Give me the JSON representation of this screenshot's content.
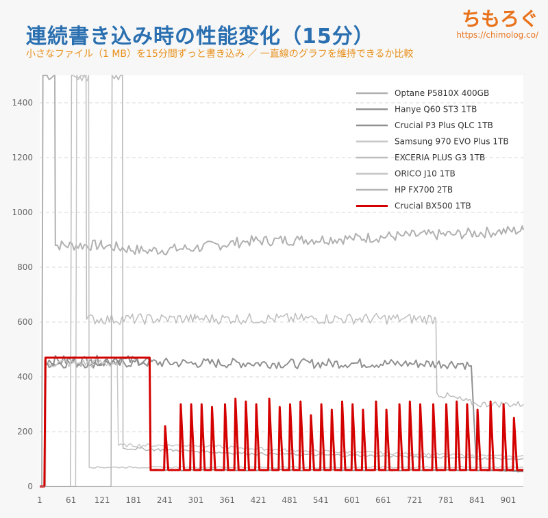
{
  "header": {
    "title": "連続書き込み時の性能変化（15分）",
    "subtitle": "小さなファイル（1 MB）を15分間ずっと書き込み ／ 一直線のグラフを維持できるか比較"
  },
  "brand": {
    "logo": "ちもろぐ",
    "url": "https://chimolog.co/"
  },
  "colors": {
    "background": "#f7f7f7",
    "title": "#2a6fb0",
    "subtitle": "#e8901c",
    "accent_line": "#d40000",
    "grid": "#d7d7d7"
  },
  "chart_data": {
    "type": "line",
    "title": "連続書き込み時の性能変化（15分）",
    "xlabel": "",
    "ylabel": "",
    "xlim": [
      1,
      930
    ],
    "ylim": [
      0,
      1500
    ],
    "x_ticks": [
      "1",
      "61",
      "121",
      "181",
      "241",
      "301",
      "361",
      "421",
      "481",
      "541",
      "601",
      "661",
      "721",
      "781",
      "841",
      "901"
    ],
    "y_ticks": [
      "0",
      "200",
      "400",
      "600",
      "800",
      "1000",
      "1200",
      "1400"
    ],
    "grid": "horizontal",
    "legend_position": "top-right",
    "series": [
      {
        "name": "Optane P5810X 400GB",
        "color": "#b0b0b0",
        "width": 2,
        "points": [
          [
            1,
            0
          ],
          [
            5,
            0
          ],
          [
            7,
            1500
          ],
          [
            30,
            1500
          ],
          [
            31,
            880
          ],
          [
            120,
            880
          ],
          [
            200,
            860
          ],
          [
            300,
            870
          ],
          [
            400,
            895
          ],
          [
            500,
            900
          ],
          [
            600,
            905
          ],
          [
            700,
            915
          ],
          [
            800,
            920
          ],
          [
            880,
            930
          ],
          [
            930,
            935
          ]
        ]
      },
      {
        "name": "Hanye Q60 ST3 1TB",
        "color": "#909090",
        "width": 2,
        "points": [
          [
            1,
            0
          ],
          [
            10,
            0
          ],
          [
            11,
            450
          ],
          [
            60,
            450
          ],
          [
            120,
            450
          ],
          [
            200,
            452
          ],
          [
            300,
            450
          ],
          [
            400,
            450
          ],
          [
            500,
            448
          ],
          [
            600,
            450
          ],
          [
            700,
            448
          ],
          [
            810,
            448
          ],
          [
            830,
            440
          ],
          [
            840,
            60
          ],
          [
            930,
            55
          ]
        ]
      },
      {
        "name": "Crucial P3 Plus QLC 1TB",
        "color": "#8f8f8f",
        "width": 2,
        "points": [
          [
            1,
            0
          ],
          [
            10,
            0
          ],
          [
            11,
            460
          ],
          [
            212,
            460
          ],
          [
            214,
            60
          ],
          [
            600,
            60
          ],
          [
            930,
            60
          ]
        ]
      },
      {
        "name": "Samsung 970 EVO Plus 1TB",
        "color": "#c8c8c8",
        "width": 1.5,
        "points": [
          [
            1,
            0
          ],
          [
            12,
            0
          ],
          [
            13,
            450
          ],
          [
            150,
            450
          ],
          [
            152,
            150
          ],
          [
            300,
            150
          ],
          [
            500,
            130
          ],
          [
            700,
            120
          ],
          [
            900,
            110
          ],
          [
            930,
            110
          ]
        ]
      },
      {
        "name": "EXCERIA PLUS G3 1TB",
        "color": "#bdbdbd",
        "width": 1.5,
        "points": [
          [
            1,
            0
          ],
          [
            60,
            0
          ],
          [
            62,
            1500
          ],
          [
            90,
            1500
          ],
          [
            91,
            610
          ],
          [
            300,
            612
          ],
          [
            500,
            612
          ],
          [
            700,
            612
          ],
          [
            762,
            612
          ],
          [
            764,
            340
          ],
          [
            840,
            300
          ],
          [
            930,
            300
          ]
        ]
      },
      {
        "name": "ORICO J10 1TB",
        "color": "#c4c4c4",
        "width": 1.5,
        "points": [
          [
            1,
            0
          ],
          [
            70,
            0
          ],
          [
            72,
            1500
          ],
          [
            95,
            1500
          ],
          [
            96,
            70
          ],
          [
            300,
            70
          ],
          [
            600,
            70
          ],
          [
            930,
            70
          ]
        ]
      },
      {
        "name": "HP FX700 2TB",
        "color": "#b5b5b5",
        "width": 1.5,
        "points": [
          [
            1,
            0
          ],
          [
            138,
            0
          ],
          [
            140,
            1500
          ],
          [
            160,
            1500
          ],
          [
            161,
            140
          ],
          [
            400,
            120
          ],
          [
            700,
            110
          ],
          [
            930,
            100
          ]
        ]
      },
      {
        "name": "Crucial BX500 1TB",
        "color": "#d40000",
        "width": 3,
        "points": [
          [
            1,
            0
          ],
          [
            10,
            0
          ],
          [
            12,
            470
          ],
          [
            100,
            470
          ],
          [
            212,
            470
          ],
          [
            214,
            60
          ],
          [
            240,
            60
          ],
          [
            242,
            220
          ],
          [
            248,
            60
          ],
          [
            270,
            60
          ],
          [
            272,
            300
          ],
          [
            278,
            60
          ],
          [
            290,
            60
          ],
          [
            292,
            300
          ],
          [
            298,
            60
          ],
          [
            310,
            60
          ],
          [
            312,
            300
          ],
          [
            318,
            60
          ],
          [
            330,
            60
          ],
          [
            332,
            290
          ],
          [
            338,
            60
          ],
          [
            355,
            60
          ],
          [
            357,
            300
          ],
          [
            363,
            60
          ],
          [
            375,
            60
          ],
          [
            377,
            320
          ],
          [
            383,
            60
          ],
          [
            395,
            60
          ],
          [
            397,
            310
          ],
          [
            403,
            60
          ],
          [
            415,
            60
          ],
          [
            417,
            300
          ],
          [
            423,
            60
          ],
          [
            440,
            60
          ],
          [
            442,
            320
          ],
          [
            448,
            60
          ],
          [
            460,
            60
          ],
          [
            462,
            290
          ],
          [
            468,
            60
          ],
          [
            480,
            60
          ],
          [
            482,
            300
          ],
          [
            488,
            60
          ],
          [
            500,
            60
          ],
          [
            502,
            310
          ],
          [
            508,
            60
          ],
          [
            520,
            60
          ],
          [
            522,
            260
          ],
          [
            528,
            60
          ],
          [
            540,
            60
          ],
          [
            542,
            300
          ],
          [
            548,
            60
          ],
          [
            560,
            60
          ],
          [
            562,
            280
          ],
          [
            568,
            60
          ],
          [
            580,
            60
          ],
          [
            582,
            310
          ],
          [
            588,
            60
          ],
          [
            600,
            60
          ],
          [
            602,
            300
          ],
          [
            608,
            60
          ],
          [
            620,
            60
          ],
          [
            622,
            280
          ],
          [
            628,
            60
          ],
          [
            645,
            60
          ],
          [
            647,
            310
          ],
          [
            653,
            60
          ],
          [
            665,
            60
          ],
          [
            667,
            280
          ],
          [
            673,
            60
          ],
          [
            690,
            60
          ],
          [
            692,
            300
          ],
          [
            698,
            60
          ],
          [
            710,
            60
          ],
          [
            712,
            310
          ],
          [
            718,
            60
          ],
          [
            730,
            60
          ],
          [
            732,
            300
          ],
          [
            738,
            60
          ],
          [
            755,
            60
          ],
          [
            757,
            300
          ],
          [
            763,
            60
          ],
          [
            780,
            60
          ],
          [
            782,
            300
          ],
          [
            788,
            60
          ],
          [
            800,
            60
          ],
          [
            802,
            310
          ],
          [
            808,
            60
          ],
          [
            820,
            60
          ],
          [
            822,
            300
          ],
          [
            828,
            60
          ],
          [
            840,
            60
          ],
          [
            842,
            280
          ],
          [
            848,
            60
          ],
          [
            865,
            60
          ],
          [
            867,
            310
          ],
          [
            873,
            60
          ],
          [
            890,
            60
          ],
          [
            892,
            300
          ],
          [
            898,
            60
          ],
          [
            910,
            60
          ],
          [
            912,
            250
          ],
          [
            918,
            60
          ],
          [
            930,
            60
          ]
        ]
      }
    ]
  }
}
